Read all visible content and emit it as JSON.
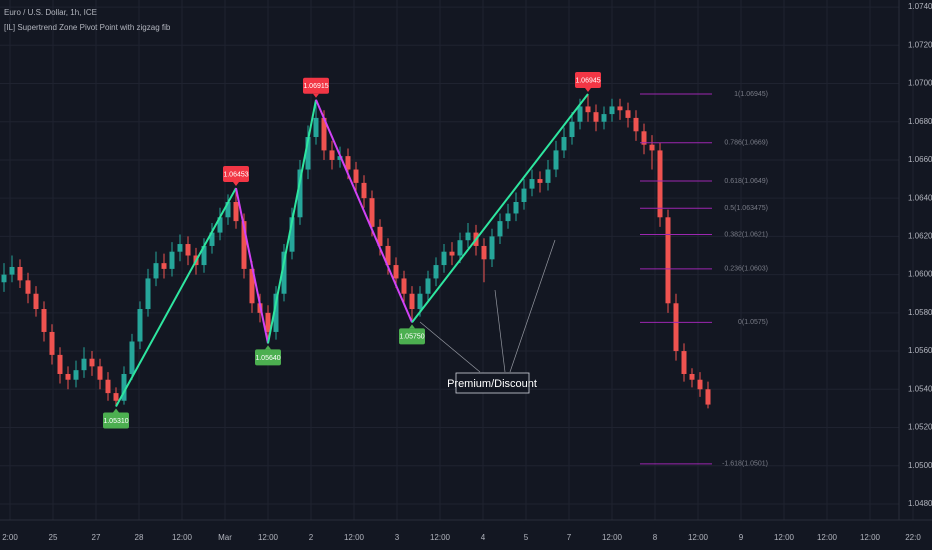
{
  "chart_data": {
    "type": "candlestick",
    "title": "Euro / U.S. Dollar, 1h, ICE",
    "subtitle": "[IL] Supertrend Zone Pivot Point with zigzag fib",
    "annotation": "Premium/Discount",
    "up_color": "#26a69a",
    "down_color": "#ef5350",
    "grid": true,
    "ylim": [
      1.04716,
      1.07437
    ],
    "yticks": [
      {
        "value": 1.048,
        "label": "1.04800"
      },
      {
        "value": 1.05,
        "label": "1.05000"
      },
      {
        "value": 1.052,
        "label": "1.05200"
      },
      {
        "value": 1.054,
        "label": "1.05400"
      },
      {
        "value": 1.056,
        "label": "1.05600"
      },
      {
        "value": 1.058,
        "label": "1.05800"
      },
      {
        "value": 1.06,
        "label": "1.06000"
      },
      {
        "value": 1.062,
        "label": "1.06200"
      },
      {
        "value": 1.064,
        "label": "1.06400"
      },
      {
        "value": 1.066,
        "label": "1.06600"
      },
      {
        "value": 1.068,
        "label": "1.06800"
      },
      {
        "value": 1.07,
        "label": "1.07000"
      },
      {
        "value": 1.072,
        "label": "1.07200"
      },
      {
        "value": 1.074,
        "label": "1.07400"
      }
    ],
    "x_labels": [
      "2:00",
      "25",
      "27",
      "28",
      "12:00",
      "Mar",
      "12:00",
      "2",
      "12:00",
      "3",
      "12:00",
      "4",
      "5",
      "7",
      "12:00",
      "8",
      "12:00",
      "9",
      "12:00",
      "12:00",
      "12:00",
      "22:0"
    ],
    "open": [
      1.0596,
      1.06,
      1.0604,
      1.0597,
      1.059,
      1.0582,
      1.057,
      1.0558,
      1.0548,
      1.0545,
      1.055,
      1.0556,
      1.0552,
      1.0545,
      1.0538,
      1.0534,
      1.0548,
      1.0565,
      1.0582,
      1.0598,
      1.0606,
      1.0603,
      1.0612,
      1.0616,
      1.061,
      1.0605,
      1.0615,
      1.0622,
      1.063,
      1.0638,
      1.0628,
      1.0603,
      1.0585,
      1.058,
      1.057,
      1.059,
      1.0612,
      1.063,
      1.0655,
      1.0672,
      1.0682,
      1.0665,
      1.066,
      1.0662,
      1.0655,
      1.0648,
      1.064,
      1.0625,
      1.0615,
      1.0605,
      1.0598,
      1.059,
      1.0582,
      1.059,
      1.0598,
      1.0605,
      1.0612,
      1.061,
      1.0618,
      1.0622,
      1.0615,
      1.0608,
      1.062,
      1.0628,
      1.0632,
      1.0638,
      1.0645,
      1.065,
      1.0648,
      1.0655,
      1.0665,
      1.0672,
      1.068,
      1.0688,
      1.0685,
      1.068,
      1.0684,
      1.0688,
      1.0686,
      1.0682,
      1.0675,
      1.0668,
      1.0665,
      1.063,
      1.0585,
      1.056,
      1.0548,
      1.0545,
      1.054
    ],
    "high": [
      1.0606,
      1.061,
      1.0608,
      1.0601,
      1.0594,
      1.0586,
      1.0574,
      1.0562,
      1.0552,
      1.0555,
      1.0562,
      1.056,
      1.0556,
      1.0549,
      1.0541,
      1.0552,
      1.0569,
      1.0586,
      1.0603,
      1.0612,
      1.0611,
      1.0617,
      1.0621,
      1.062,
      1.0614,
      1.0619,
      1.0627,
      1.0635,
      1.0642,
      1.06453,
      1.0632,
      1.0607,
      1.059,
      1.0584,
      1.0594,
      1.0616,
      1.0635,
      1.066,
      1.0678,
      1.06915,
      1.0686,
      1.067,
      1.0667,
      1.0666,
      1.0659,
      1.0652,
      1.0644,
      1.0629,
      1.0619,
      1.0609,
      1.0602,
      1.0594,
      1.0594,
      1.0602,
      1.0609,
      1.0616,
      1.0617,
      1.0622,
      1.0627,
      1.0626,
      1.0619,
      1.0624,
      1.0632,
      1.0637,
      1.0643,
      1.065,
      1.0655,
      1.0654,
      1.066,
      1.067,
      1.0677,
      1.0685,
      1.0692,
      1.06945,
      1.0689,
      1.0688,
      1.0692,
      1.0692,
      1.069,
      1.0686,
      1.0679,
      1.0673,
      1.0669,
      1.0634,
      1.059,
      1.0564,
      1.0551,
      1.0549,
      1.0544
    ],
    "low": [
      1.0591,
      1.0596,
      1.0593,
      1.0585,
      1.0578,
      1.0565,
      1.0553,
      1.0543,
      1.054,
      1.0541,
      1.0546,
      1.0547,
      1.054,
      1.0534,
      1.0531,
      1.0532,
      1.0545,
      1.0561,
      1.0578,
      1.0594,
      1.0598,
      1.0599,
      1.0607,
      1.0605,
      1.06,
      1.0601,
      1.0611,
      1.0618,
      1.0626,
      1.0624,
      1.0598,
      1.058,
      1.0575,
      1.0564,
      1.0566,
      1.0586,
      1.0608,
      1.0626,
      1.065,
      1.0668,
      1.066,
      1.0655,
      1.0656,
      1.065,
      1.0643,
      1.0635,
      1.062,
      1.061,
      1.06,
      1.0593,
      1.0585,
      1.0575,
      1.0578,
      1.0586,
      1.0594,
      1.0601,
      1.0605,
      1.0606,
      1.0614,
      1.061,
      1.0596,
      1.0604,
      1.0616,
      1.0624,
      1.0628,
      1.0634,
      1.0641,
      1.0643,
      1.0644,
      1.0651,
      1.0661,
      1.0668,
      1.0676,
      1.068,
      1.0675,
      1.0676,
      1.068,
      1.0681,
      1.0677,
      1.067,
      1.0663,
      1.0655,
      1.0625,
      1.058,
      1.0555,
      1.0544,
      1.0541,
      1.0536,
      1.053
    ],
    "close": [
      1.06,
      1.0604,
      1.0597,
      1.059,
      1.0582,
      1.057,
      1.0558,
      1.0548,
      1.0545,
      1.055,
      1.0556,
      1.0552,
      1.0545,
      1.0538,
      1.0534,
      1.0548,
      1.0565,
      1.0582,
      1.0598,
      1.0606,
      1.0603,
      1.0612,
      1.0616,
      1.061,
      1.0605,
      1.0615,
      1.0622,
      1.063,
      1.0638,
      1.0628,
      1.0603,
      1.0585,
      1.058,
      1.057,
      1.059,
      1.0612,
      1.063,
      1.0655,
      1.0672,
      1.0682,
      1.0665,
      1.066,
      1.0662,
      1.0655,
      1.0648,
      1.064,
      1.0625,
      1.0615,
      1.0605,
      1.0598,
      1.059,
      1.0582,
      1.059,
      1.0598,
      1.0605,
      1.0612,
      1.061,
      1.0618,
      1.0622,
      1.0615,
      1.0608,
      1.062,
      1.0628,
      1.0632,
      1.0638,
      1.0645,
      1.065,
      1.0648,
      1.0655,
      1.0665,
      1.0672,
      1.068,
      1.0688,
      1.0685,
      1.068,
      1.0684,
      1.0688,
      1.0686,
      1.0682,
      1.0675,
      1.0668,
      1.0665,
      1.063,
      1.0585,
      1.056,
      1.0548,
      1.0545,
      1.054,
      1.0532
    ],
    "pivots": [
      {
        "index": 14,
        "value": 1.0531,
        "label": "1.05310"
      },
      {
        "index": 29,
        "value": 1.06453,
        "label": "1.06453"
      },
      {
        "index": 33,
        "value": 1.0564,
        "label": "1.05640"
      },
      {
        "index": 39,
        "value": 1.06915,
        "label": "1.06915"
      },
      {
        "index": 51,
        "value": 1.0575,
        "label": "1.05750"
      },
      {
        "index": 73,
        "value": 1.06945,
        "label": "1.06945"
      }
    ],
    "fib_levels": [
      {
        "value": 1.06945,
        "label": "1(1.06945)"
      },
      {
        "value": 1.0669,
        "label": "0.786(1.0669)"
      },
      {
        "value": 1.0649,
        "label": "0.618(1.0649)"
      },
      {
        "value": 1.063475,
        "label": "0.5(1.063475)"
      },
      {
        "value": 1.0621,
        "label": "0.382(1.0621)"
      },
      {
        "value": 1.0603,
        "label": "0.236(1.0603)"
      },
      {
        "value": 1.0575,
        "label": "0(1.0575)"
      },
      {
        "value": 1.0501,
        "label": "-1.618(1.0501)"
      }
    ]
  }
}
